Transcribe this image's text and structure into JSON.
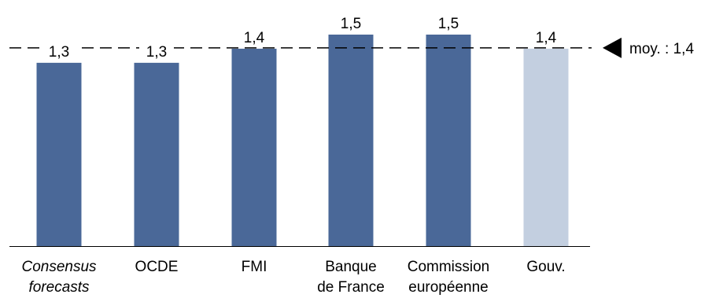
{
  "chart_data": {
    "type": "bar",
    "categories": [
      [
        "Consensus",
        "forecasts"
      ],
      [
        "OCDE"
      ],
      [
        "FMI"
      ],
      [
        "Banque",
        "de France"
      ],
      [
        "Commission",
        "européenne"
      ],
      [
        "Gouv."
      ]
    ],
    "category_italic": [
      true,
      false,
      false,
      false,
      false,
      false
    ],
    "values": [
      1.3,
      1.3,
      1.4,
      1.5,
      1.5,
      1.4
    ],
    "value_labels": [
      "1,3",
      "1,3",
      "1,4",
      "1,5",
      "1,5",
      "1,4"
    ],
    "bar_colors": [
      "#4a6898",
      "#4a6898",
      "#4a6898",
      "#4a6898",
      "#4a6898",
      "#c3cfe0"
    ],
    "ylim": [
      0,
      1.5
    ],
    "grid": false,
    "average": {
      "value": 1.4,
      "label": "moy. :  1,4"
    }
  }
}
